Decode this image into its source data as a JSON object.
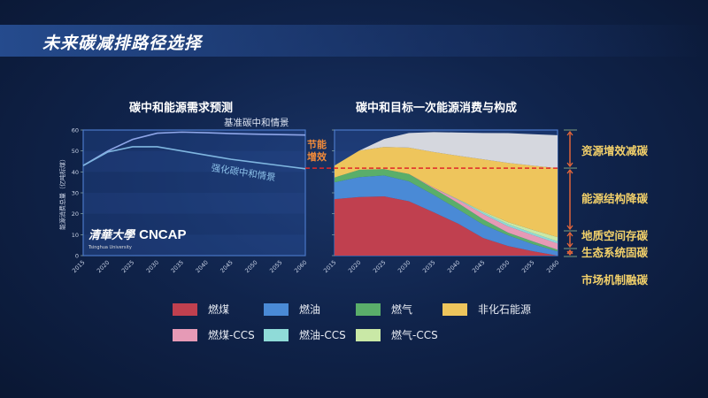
{
  "title": "未来碳减排路径选择",
  "energy_saving_label": [
    "节能",
    "增效"
  ],
  "logo": {
    "text": "CNCAP",
    "chinese": "清華大學",
    "sub": "Tsinghua University"
  },
  "annotations": [
    "资源增效减碳",
    "能源结构降碳",
    "地质空间存碳",
    "生态系统固碳",
    "市场机制融碳"
  ],
  "chart_data": [
    {
      "type": "line",
      "title": "碳中和能源需求预测",
      "ylabel": "能源消费总量（亿吨标煤）",
      "ylim": [
        0,
        60
      ],
      "yticks": [
        0,
        10,
        20,
        30,
        40,
        50,
        60
      ],
      "x": [
        2015,
        2020,
        2025,
        2030,
        2035,
        2040,
        2045,
        2050,
        2055,
        2060
      ],
      "series": [
        {
          "name": "基准碳中和情景",
          "values": [
            43,
            50,
            55.5,
            58.5,
            59,
            58.7,
            58.3,
            58,
            57.8,
            57.6
          ],
          "color": "#8fa6e8"
        },
        {
          "name": "强化碳中和情景",
          "values": [
            43,
            49.5,
            52,
            52,
            50,
            48,
            46,
            44.5,
            43,
            41.5
          ],
          "color": "#7fb6e0"
        }
      ],
      "grid": true
    },
    {
      "type": "area",
      "title": "碳中和目标一次能源消费与构成",
      "ylim": [
        0,
        60
      ],
      "stacked": true,
      "x": [
        2015,
        2020,
        2025,
        2030,
        2035,
        2040,
        2045,
        2050,
        2055,
        2060
      ],
      "series": [
        {
          "name": "燃煤",
          "color": "#c0404f",
          "values": [
            27,
            28,
            28.3,
            26,
            20.7,
            15.2,
            8.4,
            4.6,
            2.1,
            0
          ]
        },
        {
          "name": "燃油",
          "color": "#4a8ad6",
          "values": [
            8,
            9.5,
            10,
            9.5,
            8.3,
            6.8,
            6.4,
            5.1,
            3.4,
            2
          ]
        },
        {
          "name": "燃气",
          "color": "#5aae6a",
          "values": [
            2.3,
            3.5,
            3,
            3.5,
            3,
            3,
            2.5,
            1.3,
            1.3,
            0.8
          ]
        },
        {
          "name": "燃煤-CCS",
          "color": "#e69ab6",
          "values": [
            0,
            0,
            0,
            0,
            0.5,
            1.5,
            2.5,
            3,
            3,
            3
          ]
        },
        {
          "name": "燃油-CCS",
          "color": "#8fdbd8",
          "values": [
            0,
            0,
            0,
            0,
            0,
            0.3,
            0.8,
            1,
            1,
            1
          ]
        },
        {
          "name": "燃气-CCS",
          "color": "#c9e8a6",
          "values": [
            0,
            0,
            0,
            0,
            0,
            0,
            0.5,
            1,
            1.5,
            2
          ]
        },
        {
          "name": "非化石能源",
          "color": "#eec55c",
          "values": [
            5.7,
            9.2,
            10.6,
            12.6,
            17,
            20.9,
            24.9,
            28.3,
            30.7,
            33
          ]
        },
        {
          "color": "#d5d7de",
          "values": [
            0,
            0,
            3.8,
            7,
            9.5,
            11.1,
            12.6,
            14.2,
            15,
            15.7
          ]
        }
      ],
      "reference_line": {
        "value": 41.8,
        "color": "#e02828"
      },
      "legend": {
        "placement": "bottom",
        "order": [
          "燃煤",
          "燃油",
          "燃气",
          "非化石能源",
          "燃煤-CCS",
          "燃油-CCS",
          "燃气-CCS"
        ]
      }
    }
  ]
}
